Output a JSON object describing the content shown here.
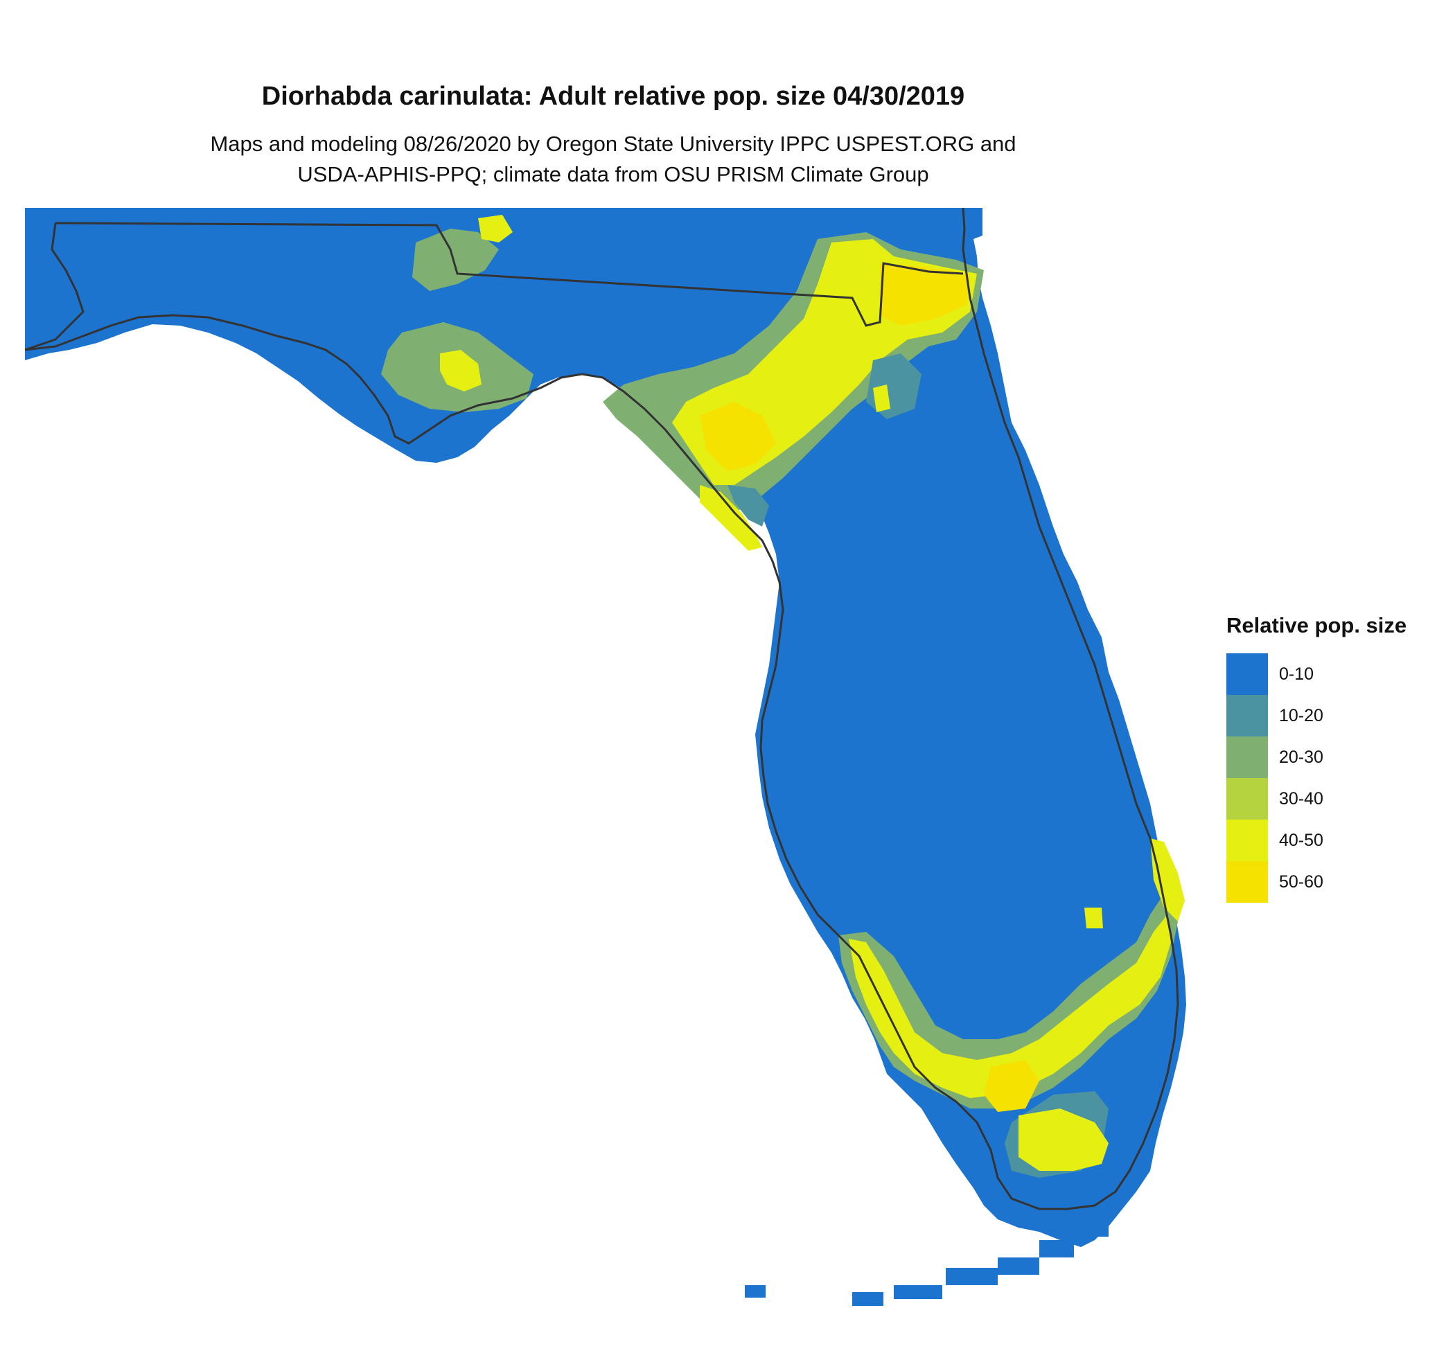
{
  "title": "Diorhabda carinulata: Adult relative pop. size 04/30/2019",
  "subtitle_line1": "Maps and modeling 08/26/2020 by Oregon State University IPPC USPEST.ORG and",
  "subtitle_line2": "USDA-APHIS-PPQ; climate data from OSU PRISM Climate Group",
  "legend": {
    "title": "Relative pop. size",
    "items": [
      {
        "label": "0-10",
        "color": "#1c74cf"
      },
      {
        "label": "10-20",
        "color": "#4b93a0"
      },
      {
        "label": "20-30",
        "color": "#80b071"
      },
      {
        "label": "30-40",
        "color": "#b5d33e"
      },
      {
        "label": "40-50",
        "color": "#e5ef12"
      },
      {
        "label": "50-60",
        "color": "#f6e200"
      }
    ]
  },
  "map": {
    "region": "Florida",
    "land_color": "#1c74cf",
    "outline_color": "#333333"
  }
}
